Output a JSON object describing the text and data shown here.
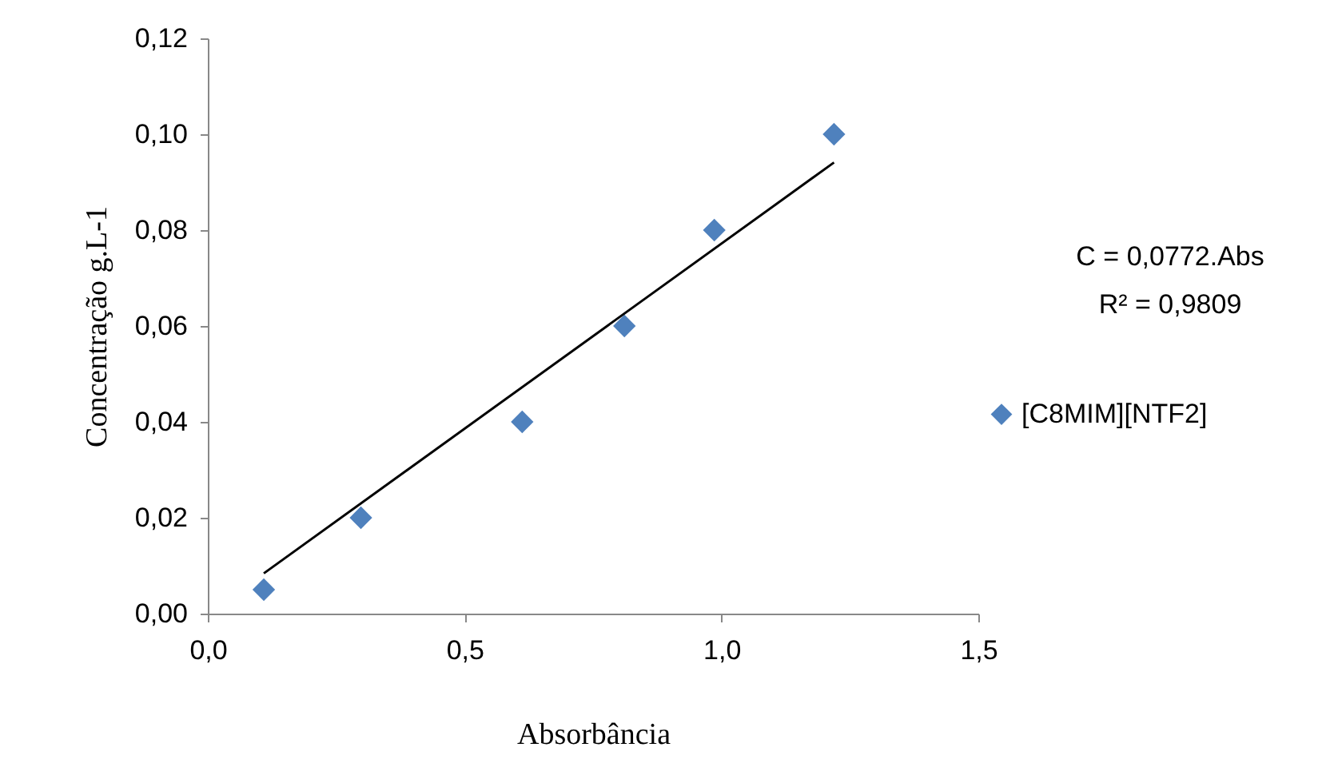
{
  "chart_data": {
    "type": "scatter",
    "xlabel": "Absorbância",
    "ylabel": "Concentração g.L-1",
    "series": [
      {
        "name": "[C8MIM][NTF2]",
        "color": "#4f81bd",
        "x": [
          0.109,
          0.298,
          0.612,
          0.811,
          0.986,
          1.219
        ],
        "values": [
          0.005,
          0.02,
          0.04,
          0.06,
          0.08,
          0.1
        ]
      },
      {
        "type": "line",
        "marker": "none",
        "color": "#000000",
        "x": [
          0.109,
          1.219
        ],
        "values": [
          0.0084,
          0.0941
        ]
      }
    ],
    "annotations": [
      "C = 0,0772.Abs",
      "R² = 0,9809"
    ],
    "xlim": [
      0,
      1.5
    ],
    "xticks": [
      {
        "value": 0,
        "label": "0,0"
      },
      {
        "value": 0.5,
        "label": "0,5"
      },
      {
        "value": 1,
        "label": "1,0"
      },
      {
        "value": 1.5,
        "label": "1,5"
      }
    ],
    "ylim": [
      0,
      0.12
    ],
    "yticks": [
      {
        "value": 0,
        "label": "0,00"
      },
      {
        "value": 0.02,
        "label": "0,02"
      },
      {
        "value": 0.04,
        "label": "0,04"
      },
      {
        "value": 0.06,
        "label": "0,06"
      },
      {
        "value": 0.08,
        "label": "0,08"
      },
      {
        "value": 0.1,
        "label": "0,10"
      },
      {
        "value": 0.12,
        "label": "0,12"
      }
    ],
    "grid": false,
    "legend": "right",
    "marker": "diamond"
  }
}
